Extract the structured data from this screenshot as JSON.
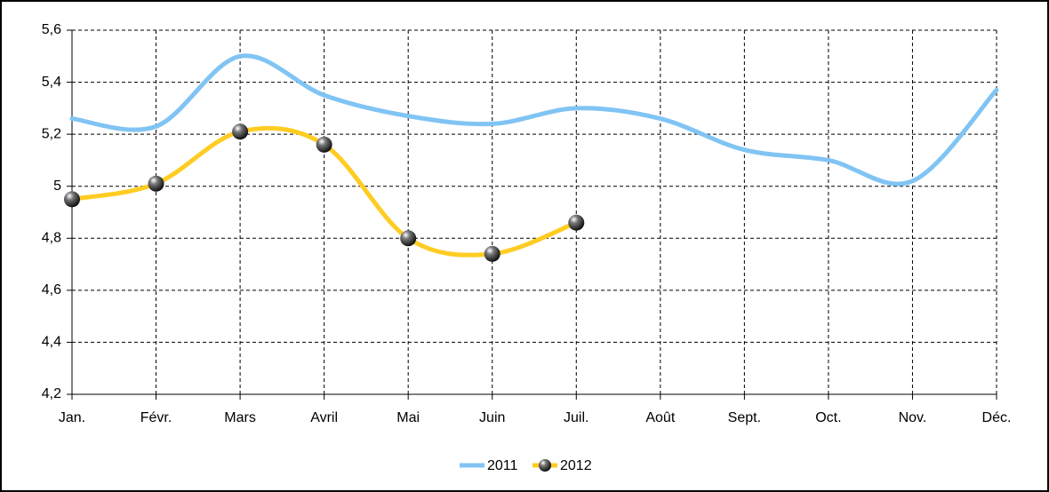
{
  "chart_data": {
    "type": "line",
    "categories": [
      "Jan.",
      "Févr.",
      "Mars",
      "Avril",
      "Mai",
      "Juin",
      "Juil.",
      "Août",
      "Sept.",
      "Oct.",
      "Nov.",
      "Déc."
    ],
    "series": [
      {
        "name": "2011",
        "color": "#80c4f4",
        "values": [
          5.26,
          5.23,
          5.5,
          5.35,
          5.27,
          5.24,
          5.3,
          5.26,
          5.14,
          5.1,
          5.02,
          5.37
        ]
      },
      {
        "name": "2012",
        "color": "#ffcc22",
        "values": [
          4.95,
          5.01,
          5.21,
          5.16,
          4.8,
          4.74,
          4.86,
          null,
          null,
          null,
          null,
          null
        ]
      }
    ],
    "ylim": [
      4.2,
      5.6
    ],
    "yticks": [
      {
        "value": 4.2,
        "label": "4,2"
      },
      {
        "value": 4.4,
        "label": "4,4"
      },
      {
        "value": 4.6,
        "label": "4,6"
      },
      {
        "value": 4.8,
        "label": "4,8"
      },
      5,
      {
        "value": 5.2,
        "label": "5,2"
      },
      {
        "value": 5.4,
        "label": "5,4"
      },
      {
        "value": 5.6,
        "label": "5,6"
      }
    ],
    "grid": true,
    "legend": "bottom"
  }
}
